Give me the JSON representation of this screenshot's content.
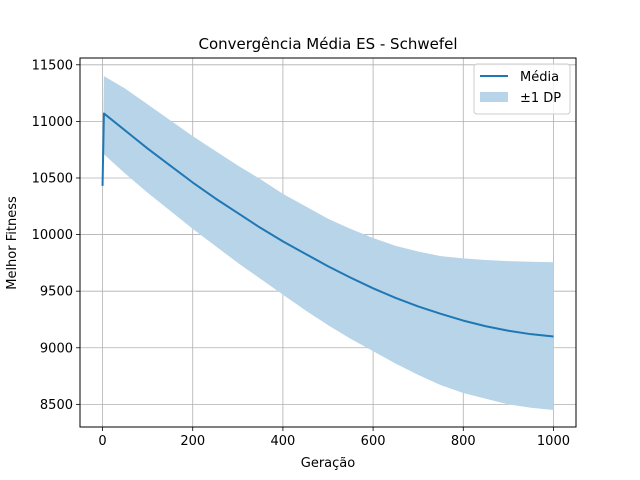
{
  "chart_data": {
    "type": "line",
    "title": "Convergência Média ES - Schwefel",
    "xlabel": "Geração",
    "ylabel": "Melhor Fitness",
    "xlim": [
      -50,
      1050
    ],
    "ylim": [
      8300,
      11560
    ],
    "xticks": [
      0,
      200,
      400,
      600,
      800,
      1000
    ],
    "yticks": [
      8500,
      9000,
      9500,
      10000,
      10500,
      11000,
      11500
    ],
    "grid": true,
    "legend_position": "top-right",
    "series": [
      {
        "name": "Média",
        "kind": "line",
        "color": "#1f77b4",
        "x": [
          0,
          3,
          50,
          100,
          150,
          200,
          250,
          300,
          350,
          400,
          450,
          500,
          550,
          600,
          650,
          700,
          750,
          800,
          850,
          900,
          950,
          1000
        ],
        "values": [
          10430,
          11070,
          10920,
          10760,
          10610,
          10460,
          10320,
          10190,
          10060,
          9940,
          9830,
          9720,
          9620,
          9525,
          9440,
          9365,
          9300,
          9240,
          9190,
          9150,
          9120,
          9100
        ]
      },
      {
        "name": "±1 DP",
        "kind": "band",
        "color": "#b8d4e8",
        "x": [
          0,
          3,
          50,
          100,
          150,
          200,
          250,
          300,
          350,
          400,
          450,
          500,
          550,
          600,
          650,
          700,
          750,
          800,
          850,
          900,
          950,
          1000
        ],
        "lower": [
          10430,
          10710,
          10540,
          10370,
          10210,
          10050,
          9900,
          9750,
          9610,
          9470,
          9330,
          9200,
          9080,
          8970,
          8860,
          8760,
          8670,
          8600,
          8550,
          8500,
          8470,
          8450
        ],
        "upper": [
          10430,
          11400,
          11290,
          11150,
          11010,
          10870,
          10740,
          10610,
          10490,
          10360,
          10250,
          10140,
          10050,
          9970,
          9900,
          9850,
          9810,
          9790,
          9775,
          9765,
          9760,
          9755
        ]
      }
    ]
  }
}
